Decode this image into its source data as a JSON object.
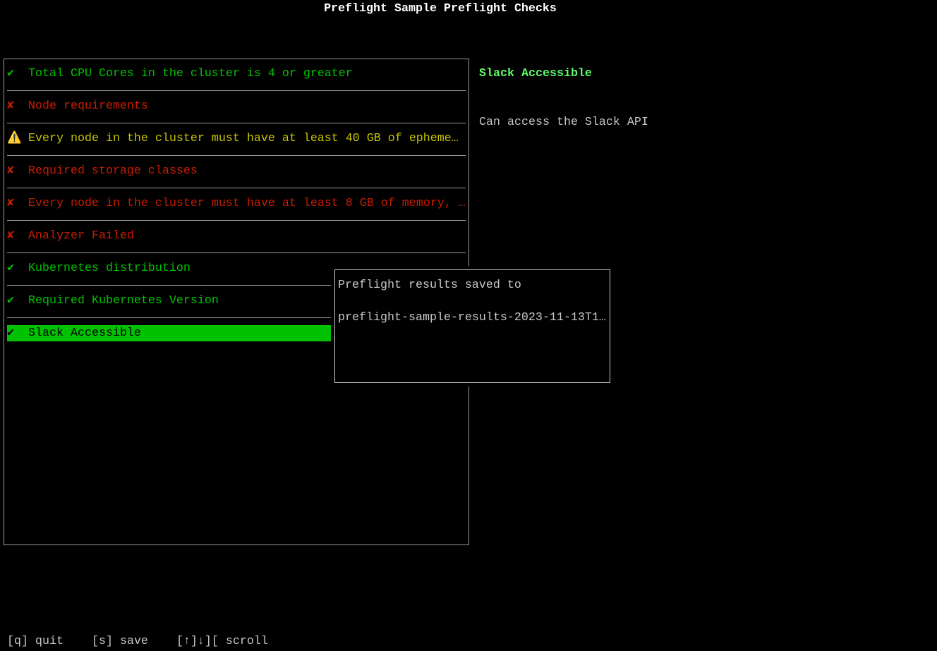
{
  "title": "Preflight Sample Preflight Checks",
  "checks": [
    {
      "status": "pass",
      "icon": "✔",
      "label": "Total CPU Cores in the cluster is 4 or greater"
    },
    {
      "status": "fail",
      "icon": "✘",
      "label": "Node requirements"
    },
    {
      "status": "warn",
      "icon": "⚠️",
      "label": "Every node in the cluster must have at least 40 GB of epheme…"
    },
    {
      "status": "fail",
      "icon": "✘",
      "label": "Required storage classes"
    },
    {
      "status": "fail",
      "icon": "✘",
      "label": "Every node in the cluster must have at least 8 GB of memory, …"
    },
    {
      "status": "fail",
      "icon": "✘",
      "label": "Analyzer Failed"
    },
    {
      "status": "pass",
      "icon": "✔",
      "label": "Kubernetes distribution"
    },
    {
      "status": "pass",
      "icon": "✔",
      "label": "Required Kubernetes Version"
    },
    {
      "status": "pass",
      "icon": "✔",
      "label": "Slack Accessible",
      "selected": true
    }
  ],
  "detail": {
    "title": "Slack Accessible",
    "description": "Can access the Slack API"
  },
  "popup": {
    "line1": "Preflight results saved to",
    "line2": "preflight-sample-results-2023-11-13T1…"
  },
  "footer": {
    "quit": "[q] quit",
    "save": "[s] save",
    "scroll": "[↑]↓][ scroll"
  },
  "colors": {
    "pass": "#00c200",
    "fail": "#c91b00",
    "warn": "#c7c400",
    "title": "#5ffa68"
  }
}
